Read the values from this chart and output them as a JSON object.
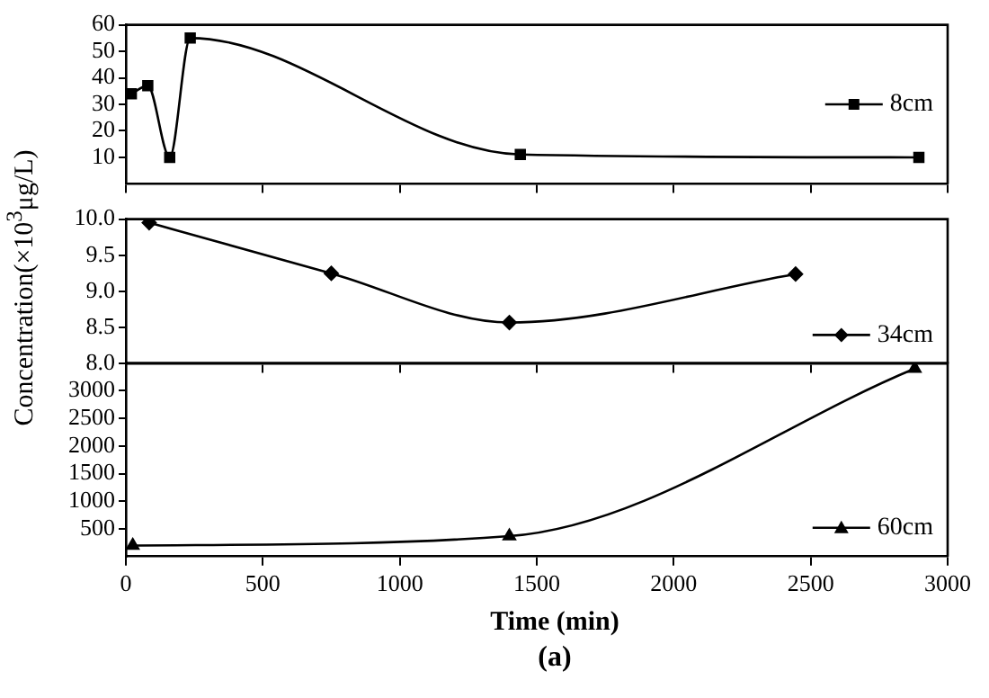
{
  "chart_data": [
    {
      "type": "line",
      "xlim": [
        0,
        3000
      ],
      "xticks": [
        0,
        500,
        1000,
        1500,
        2000,
        2500,
        3000
      ],
      "ylim": [
        0,
        60
      ],
      "yticks": [
        10,
        20,
        30,
        40,
        50,
        60
      ],
      "tick_labels": "y",
      "legend": "right",
      "marker": "square",
      "series": [
        {
          "name": "8cm",
          "color": "#000000",
          "x": [
            20,
            80,
            160,
            235,
            1440,
            2895
          ],
          "values": [
            34,
            37,
            10,
            55,
            11.1,
            10
          ]
        }
      ]
    },
    {
      "type": "line",
      "ylabel": "Concentration(×10$^{3}$μg/L)",
      "xlim": [
        0,
        3000
      ],
      "xticks": [
        0,
        500,
        1000,
        1500,
        2000,
        2500,
        3000
      ],
      "ylim": [
        8.0,
        10.0
      ],
      "yticks": [
        {
          "value": 8,
          "label": "8.0"
        },
        8.5,
        {
          "value": 9,
          "label": "9.0"
        },
        9.5,
        {
          "value": 10,
          "label": "10.0"
        }
      ],
      "tick_labels": "y",
      "legend": "bottom right",
      "marker": "diamond",
      "series": [
        {
          "name": "34cm",
          "color": "#000000",
          "x": [
            85,
            750,
            1400,
            2445
          ],
          "values": [
            9.95,
            9.25,
            8.57,
            9.24
          ]
        }
      ]
    },
    {
      "type": "line",
      "xlabel": "Time (min)",
      "annotations": [
        "(a)"
      ],
      "xlim": [
        0,
        3000
      ],
      "xticks": [
        0,
        500,
        1000,
        1500,
        2000,
        2500,
        3000
      ],
      "ylim": [
        0,
        3500
      ],
      "yticks": [
        500,
        1000,
        1500,
        2000,
        2500,
        3000
      ],
      "legend": "bottom right",
      "marker": "triangle",
      "series": [
        {
          "name": "60cm",
          "color": "#000000",
          "x": [
            25,
            1400,
            2880
          ],
          "values": [
            200,
            370,
            3400
          ]
        }
      ]
    }
  ]
}
